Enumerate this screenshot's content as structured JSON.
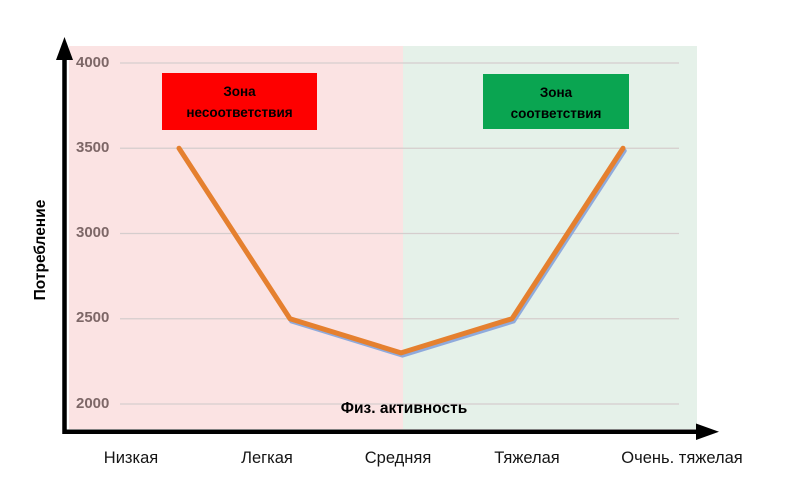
{
  "chart_data": {
    "type": "line",
    "title": "",
    "xlabel": "Физ. активность",
    "ylabel": "Потребление",
    "categories": [
      "Низкая",
      "Легкая",
      "Средняя",
      "Тяжелая",
      "Очень. тяжелая"
    ],
    "yticks": [
      4000,
      3500,
      3000,
      2500,
      2000
    ],
    "ylim": [
      2000,
      4000
    ],
    "values": [
      3500,
      2500,
      2300,
      2500,
      3500
    ],
    "line_color": "#E5802F",
    "line_underlay_color": "#8FAADC",
    "axis_color": "#000000",
    "gridline_color": "#D5CDCD",
    "tick_label_color": "#7D6767",
    "grid": true,
    "legend": "none",
    "zones": [
      {
        "line1": "Зона",
        "line2": "несоответствия",
        "band_color": "#FBE3E3",
        "box_color": "#FE0000",
        "text_color": "#000000"
      },
      {
        "line1": "Зона",
        "line2": "соответствия",
        "band_color": "#E5F1E9",
        "box_color": "#0AA551",
        "text_color": "#000000"
      }
    ]
  }
}
